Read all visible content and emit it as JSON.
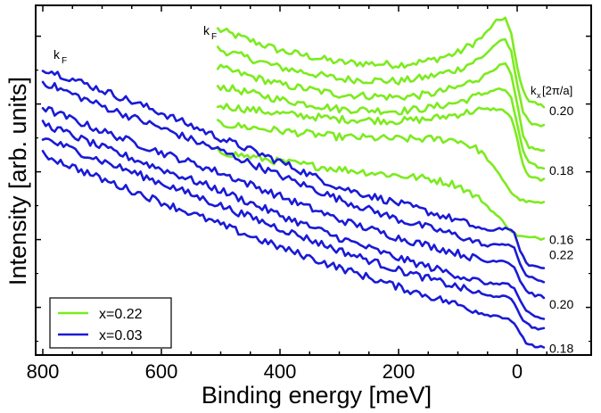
{
  "chart_data": {
    "type": "line",
    "title": "",
    "xlabel": "Binding energy [meV]",
    "ylabel": "Intensity [arb. units]",
    "xlim": [
      800,
      -60
    ],
    "ylim": [
      0,
      1
    ],
    "x_ticks": [
      800,
      600,
      400,
      200,
      0
    ],
    "x_tick_labels": [
      "800",
      "600",
      "400",
      "200",
      "0"
    ],
    "y_tick_labels_shown": false,
    "legend": {
      "placement": "bottom-left",
      "entries": [
        {
          "label": "x=0.22",
          "color": "#7CEB1E"
        },
        {
          "label": "x=0.03",
          "color": "#1A1AD6"
        }
      ]
    },
    "annotations": {
      "kF_green": "k",
      "kF_green_sub": "F",
      "kF_blue": "k",
      "kF_blue_sub": "F",
      "kx_header": "k",
      "kx_header_sub": "x",
      "kx_header_unit": "[2π/a]"
    },
    "series": [
      {
        "name": "x=0.22",
        "color": "#7CEB1E",
        "points": [
          [
            505,
            0.95
          ],
          [
            400,
            0.888
          ],
          [
            300,
            0.853
          ],
          [
            200,
            0.846
          ],
          [
            150,
            0.857
          ],
          [
            100,
            0.881
          ],
          [
            60,
            0.925
          ],
          [
            35,
            0.975
          ],
          [
            20,
            0.984
          ],
          [
            10,
            0.935
          ],
          [
            0,
            0.838
          ],
          [
            -10,
            0.769
          ],
          [
            -20,
            0.74
          ],
          [
            -45,
            0.723
          ]
        ]
      },
      {
        "name": "x=0.22",
        "color": "#7CEB1E",
        "points": [
          [
            505,
            0.892
          ],
          [
            400,
            0.838
          ],
          [
            300,
            0.804
          ],
          [
            200,
            0.797
          ],
          [
            150,
            0.81
          ],
          [
            100,
            0.832
          ],
          [
            60,
            0.866
          ],
          [
            35,
            0.909
          ],
          [
            20,
            0.92
          ],
          [
            10,
            0.883
          ],
          [
            0,
            0.793
          ],
          [
            -10,
            0.706
          ],
          [
            -20,
            0.676
          ],
          [
            -45,
            0.665
          ]
        ]
      },
      {
        "name": "x=0.22",
        "color": "#7CEB1E",
        "points": [
          [
            505,
            0.838
          ],
          [
            400,
            0.788
          ],
          [
            300,
            0.758
          ],
          [
            200,
            0.75
          ],
          [
            150,
            0.758
          ],
          [
            100,
            0.779
          ],
          [
            60,
            0.81
          ],
          [
            35,
            0.838
          ],
          [
            20,
            0.849
          ],
          [
            10,
            0.814
          ],
          [
            0,
            0.728
          ],
          [
            -10,
            0.635
          ],
          [
            -20,
            0.603
          ],
          [
            -45,
            0.59
          ]
        ]
      },
      {
        "name": "x=0.22",
        "color": "#7CEB1E",
        "points": [
          [
            505,
            0.784
          ],
          [
            400,
            0.743
          ],
          [
            300,
            0.715
          ],
          [
            200,
            0.709
          ],
          [
            150,
            0.718
          ],
          [
            100,
            0.735
          ],
          [
            60,
            0.758
          ],
          [
            35,
            0.774
          ],
          [
            20,
            0.771
          ],
          [
            10,
            0.745
          ],
          [
            0,
            0.672
          ],
          [
            -10,
            0.59
          ],
          [
            -20,
            0.555
          ],
          [
            -45,
            0.538
          ]
        ]
      },
      {
        "name": "x=0.22",
        "color": "#7CEB1E",
        "points": [
          [
            505,
            0.726
          ],
          [
            400,
            0.702
          ],
          [
            300,
            0.685
          ],
          [
            200,
            0.68
          ],
          [
            150,
            0.685
          ],
          [
            100,
            0.7
          ],
          [
            60,
            0.714
          ],
          [
            35,
            0.715
          ],
          [
            20,
            0.709
          ],
          [
            10,
            0.689
          ],
          [
            0,
            0.627
          ],
          [
            -10,
            0.549
          ],
          [
            -20,
            0.514
          ],
          [
            -45,
            0.506
          ]
        ]
      },
      {
        "name": "x=0.22",
        "color": "#7CEB1E",
        "points": [
          [
            505,
            0.672
          ],
          [
            400,
            0.651
          ],
          [
            300,
            0.633
          ],
          [
            200,
            0.627
          ],
          [
            150,
            0.627
          ],
          [
            100,
            0.624
          ],
          [
            60,
            0.59
          ],
          [
            35,
            0.532
          ],
          [
            20,
            0.497
          ],
          [
            10,
            0.469
          ],
          [
            0,
            0.452
          ],
          [
            -10,
            0.445
          ],
          [
            -20,
            0.441
          ],
          [
            -45,
            0.437
          ]
        ]
      },
      {
        "name": "x=0.22",
        "color": "#7CEB1E",
        "points": [
          [
            505,
            0.59
          ],
          [
            400,
            0.56
          ],
          [
            300,
            0.538
          ],
          [
            200,
            0.519
          ],
          [
            150,
            0.51
          ],
          [
            100,
            0.491
          ],
          [
            60,
            0.445
          ],
          [
            35,
            0.402
          ],
          [
            20,
            0.376
          ],
          [
            10,
            0.355
          ],
          [
            0,
            0.343
          ],
          [
            -10,
            0.338
          ],
          [
            -20,
            0.336
          ],
          [
            -45,
            0.333
          ]
        ]
      },
      {
        "name": "x=0.03",
        "color": "#1A1AD6",
        "points": [
          [
            800,
            0.836
          ],
          [
            700,
            0.771
          ],
          [
            600,
            0.704
          ],
          [
            500,
            0.629
          ],
          [
            400,
            0.56
          ],
          [
            300,
            0.484
          ],
          [
            200,
            0.437
          ],
          [
            100,
            0.387
          ],
          [
            50,
            0.355
          ],
          [
            30,
            0.363
          ],
          [
            15,
            0.363
          ],
          [
            5,
            0.346
          ],
          [
            -5,
            0.3
          ],
          [
            -15,
            0.259
          ],
          [
            -30,
            0.251
          ],
          [
            -45,
            0.246
          ]
        ]
      },
      {
        "name": "x=0.03",
        "color": "#1A1AD6",
        "points": [
          [
            800,
            0.795
          ],
          [
            700,
            0.724
          ],
          [
            600,
            0.659
          ],
          [
            500,
            0.592
          ],
          [
            400,
            0.519
          ],
          [
            300,
            0.449
          ],
          [
            200,
            0.389
          ],
          [
            100,
            0.342
          ],
          [
            50,
            0.31
          ],
          [
            30,
            0.318
          ],
          [
            15,
            0.316
          ],
          [
            5,
            0.303
          ],
          [
            -5,
            0.259
          ],
          [
            -15,
            0.225
          ],
          [
            -30,
            0.212
          ],
          [
            -45,
            0.207
          ]
        ]
      },
      {
        "name": "x=0.03",
        "color": "#1A1AD6",
        "points": [
          [
            800,
            0.719
          ],
          [
            700,
            0.65
          ],
          [
            600,
            0.587
          ],
          [
            500,
            0.527
          ],
          [
            400,
            0.458
          ],
          [
            300,
            0.389
          ],
          [
            200,
            0.335
          ],
          [
            100,
            0.29
          ],
          [
            50,
            0.264
          ],
          [
            30,
            0.27
          ],
          [
            15,
            0.264
          ],
          [
            5,
            0.249
          ],
          [
            -5,
            0.21
          ],
          [
            -15,
            0.179
          ],
          [
            -30,
            0.166
          ],
          [
            -45,
            0.16
          ]
        ]
      },
      {
        "name": "x=0.03",
        "color": "#1A1AD6",
        "points": [
          [
            800,
            0.673
          ],
          [
            700,
            0.602
          ],
          [
            600,
            0.538
          ],
          [
            500,
            0.475
          ],
          [
            400,
            0.402
          ],
          [
            300,
            0.335
          ],
          [
            200,
            0.275
          ],
          [
            100,
            0.225
          ],
          [
            50,
            0.199
          ],
          [
            30,
            0.201
          ],
          [
            15,
            0.199
          ],
          [
            5,
            0.184
          ],
          [
            -5,
            0.147
          ],
          [
            -15,
            0.119
          ],
          [
            -30,
            0.104
          ],
          [
            -45,
            0.095
          ]
        ]
      },
      {
        "name": "x=0.03",
        "color": "#1A1AD6",
        "points": [
          [
            800,
            0.63
          ],
          [
            700,
            0.562
          ],
          [
            600,
            0.497
          ],
          [
            500,
            0.43
          ],
          [
            400,
            0.363
          ],
          [
            300,
            0.298
          ],
          [
            200,
            0.24
          ],
          [
            100,
            0.19
          ],
          [
            50,
            0.164
          ],
          [
            30,
            0.164
          ],
          [
            15,
            0.158
          ],
          [
            5,
            0.143
          ],
          [
            -5,
            0.108
          ],
          [
            -15,
            0.082
          ],
          [
            -30,
            0.069
          ],
          [
            -45,
            0.065
          ]
        ]
      },
      {
        "name": "x=0.03",
        "color": "#1A1AD6",
        "points": [
          [
            800,
            0.582
          ],
          [
            700,
            0.508
          ],
          [
            600,
            0.441
          ],
          [
            500,
            0.374
          ],
          [
            400,
            0.307
          ],
          [
            300,
            0.247
          ],
          [
            200,
            0.19
          ],
          [
            100,
            0.138
          ],
          [
            50,
            0.108
          ],
          [
            30,
            0.104
          ],
          [
            15,
            0.097
          ],
          [
            5,
            0.084
          ],
          [
            -5,
            0.05
          ],
          [
            -15,
            0.026
          ],
          [
            -30,
            0.015
          ],
          [
            -45,
            0.011
          ]
        ]
      }
    ],
    "right_labels": [
      {
        "text": "0.20",
        "y": 0.711
      },
      {
        "text": "0.18",
        "y": 0.534
      },
      {
        "text": "0.16",
        "y": 0.33
      },
      {
        "text": "0.22",
        "y": 0.285
      },
      {
        "text": "0.20",
        "y": 0.14
      },
      {
        "text": "0.18",
        "y": 0.009
      }
    ]
  }
}
